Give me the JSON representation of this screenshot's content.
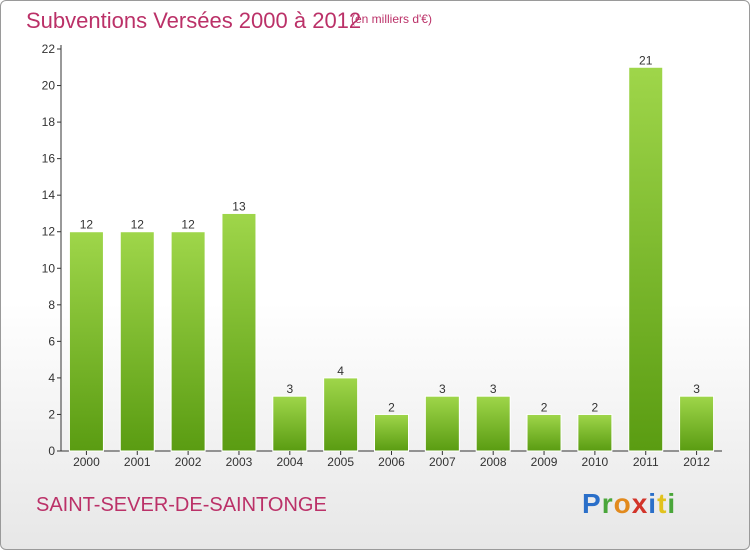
{
  "header": {
    "title": "Subventions Versées 2000 à 2012",
    "unit": "(en milliers d'€)"
  },
  "footer": {
    "commune": "SAINT-SEVER-DE-SAINTONGE",
    "logo_text": "Proxiti"
  },
  "colors": {
    "title": "#bb3168",
    "bar_light": "#9fd64a",
    "bar_dark": "#5a9c12",
    "axis": "#333333"
  },
  "chart_data": {
    "type": "bar",
    "categories": [
      "2000",
      "2001",
      "2002",
      "2003",
      "2004",
      "2005",
      "2006",
      "2007",
      "2008",
      "2009",
      "2010",
      "2011",
      "2012"
    ],
    "values": [
      12,
      12,
      12,
      13,
      3,
      4,
      2,
      3,
      3,
      2,
      2,
      21,
      3
    ],
    "ylim": [
      0,
      22
    ],
    "yticks": [
      0,
      2,
      4,
      6,
      8,
      10,
      12,
      14,
      16,
      18,
      20,
      22
    ],
    "grid": false
  }
}
